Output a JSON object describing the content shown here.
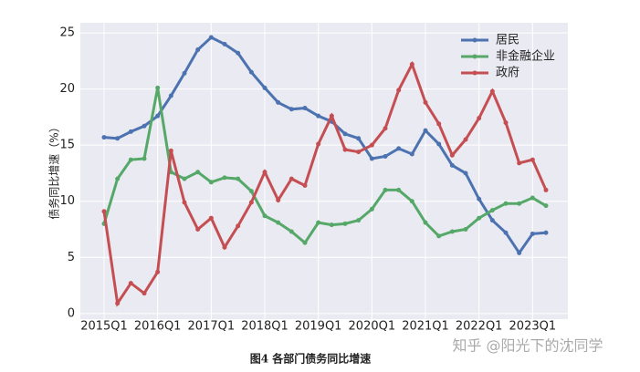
{
  "chart_data": {
    "type": "line",
    "caption": "图4 各部门债务同比增速",
    "watermark": "知乎 @阳光下的沈同学",
    "ylabel": "债务同比增速（%）",
    "categories": [
      "2015Q1",
      null,
      null,
      null,
      "2016Q1",
      null,
      null,
      null,
      "2017Q1",
      null,
      null,
      null,
      "2018Q1",
      null,
      null,
      null,
      "2019Q1",
      null,
      null,
      null,
      "2020Q1",
      null,
      null,
      null,
      "2021Q1",
      null,
      null,
      null,
      "2022Q1",
      null,
      null,
      null,
      "2023Q1",
      null
    ],
    "ylim": [
      -0.5,
      25.9
    ],
    "yticks": [
      0,
      5,
      10,
      15,
      20,
      25
    ],
    "grid": true,
    "legend": "upper right",
    "series": [
      {
        "name": "居民",
        "color": "#4c72b0",
        "values": [
          15.7,
          15.6,
          16.2,
          16.7,
          17.6,
          19.4,
          21.4,
          23.5,
          24.6,
          24.0,
          23.2,
          21.5,
          20.1,
          18.8,
          18.2,
          18.3,
          17.6,
          17.1,
          16.0,
          15.6,
          13.8,
          14.0,
          14.7,
          14.2,
          16.3,
          15.1,
          13.2,
          12.5,
          10.2,
          8.3,
          7.2,
          5.4,
          7.1,
          7.2
        ]
      },
      {
        "name": "非金融企业",
        "color": "#55a868",
        "values": [
          8.0,
          12.0,
          13.7,
          13.8,
          20.1,
          12.6,
          12.0,
          12.6,
          11.7,
          12.1,
          12.0,
          10.9,
          8.7,
          8.1,
          7.3,
          6.3,
          8.1,
          7.9,
          8.0,
          8.3,
          9.3,
          11.0,
          11.0,
          10.0,
          8.1,
          6.9,
          7.3,
          7.5,
          8.5,
          9.2,
          9.8,
          9.8,
          10.3,
          9.6
        ]
      },
      {
        "name": "政府",
        "color": "#c44e52",
        "values": [
          9.1,
          0.9,
          2.7,
          1.8,
          3.7,
          14.5,
          9.9,
          7.5,
          8.5,
          5.9,
          7.8,
          9.9,
          12.6,
          10.1,
          12.0,
          11.4,
          15.1,
          17.6,
          14.6,
          14.4,
          15.0,
          16.5,
          19.9,
          22.2,
          18.8,
          16.9,
          14.1,
          15.5,
          17.4,
          19.8,
          17.0,
          13.4,
          13.7,
          11.0
        ]
      }
    ]
  }
}
